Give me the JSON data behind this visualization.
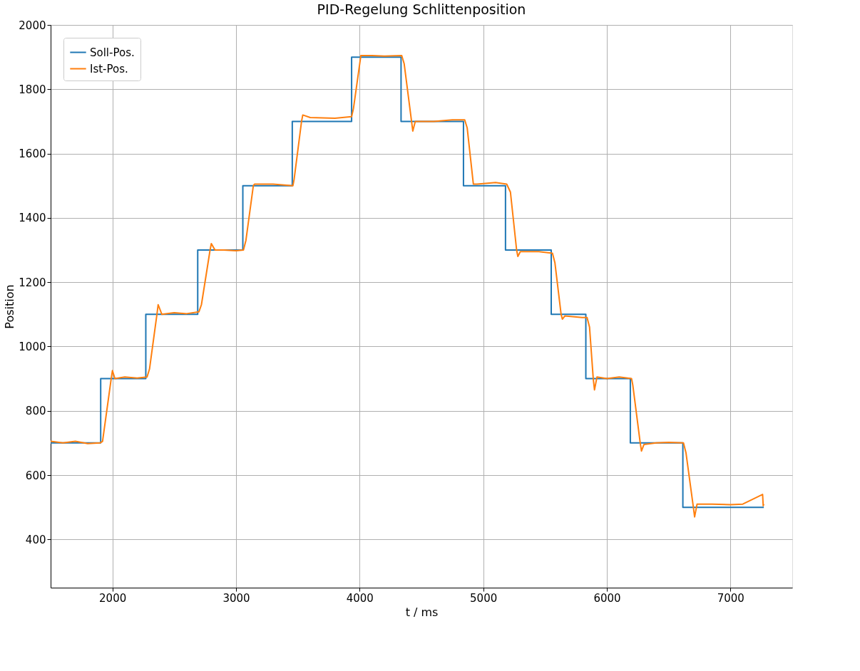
{
  "chart_data": {
    "type": "line",
    "title": "PID-Regelung Schlittenposition",
    "xlabel": "t / ms",
    "ylabel": "Position",
    "xlim": [
      1500,
      7500
    ],
    "ylim": [
      250,
      2000
    ],
    "xticks": [
      2000,
      3000,
      4000,
      5000,
      6000,
      7000
    ],
    "yticks": [
      400,
      600,
      800,
      1000,
      1200,
      1400,
      1600,
      1800,
      2000
    ],
    "grid": true,
    "legend": "top left",
    "line_style": "solid",
    "marker": "none",
    "series": [
      {
        "name": "Soll-Pos.",
        "type": "step",
        "color": "#1f77b4",
        "x": [
          1500,
          1905,
          2270,
          2690,
          3055,
          3455,
          3935,
          4335,
          4840,
          5180,
          5550,
          5830,
          6190,
          6615,
          7270
        ],
        "values": [
          700,
          900,
          1100,
          1300,
          1500,
          1700,
          1900,
          1700,
          1500,
          1300,
          1100,
          900,
          700,
          500,
          500
        ]
      },
      {
        "name": "Ist-Pos.",
        "color": "#ff7f0e",
        "x": [
          1500,
          1600,
          1700,
          1800,
          1900,
          1920,
          1990,
          2000,
          2020,
          2100,
          2200,
          2280,
          2300,
          2360,
          2370,
          2400,
          2500,
          2600,
          2700,
          2720,
          2790,
          2800,
          2830,
          2900,
          3000,
          3060,
          3080,
          3140,
          3150,
          3300,
          3460,
          3470,
          3530,
          3540,
          3600,
          3800,
          3935,
          3950,
          4010,
          4100,
          4200,
          4340,
          4360,
          4420,
          4430,
          4450,
          4600,
          4750,
          4850,
          4870,
          4920,
          4950,
          5100,
          5190,
          5220,
          5270,
          5280,
          5300,
          5450,
          5560,
          5580,
          5630,
          5640,
          5660,
          5800,
          5840,
          5860,
          5890,
          5900,
          5920,
          6000,
          6100,
          6200,
          6210,
          6270,
          6280,
          6300,
          6400,
          6500,
          6620,
          6640,
          6700,
          6710,
          6730,
          6850,
          7000,
          7100,
          7260,
          7265,
          7270
        ],
        "values": [
          705,
          700,
          705,
          698,
          700,
          705,
          900,
          925,
          900,
          905,
          902,
          905,
          930,
          1100,
          1130,
          1100,
          1105,
          1102,
          1108,
          1130,
          1300,
          1320,
          1300,
          1300,
          1298,
          1300,
          1330,
          1500,
          1505,
          1505,
          1500,
          1520,
          1700,
          1720,
          1712,
          1710,
          1715,
          1740,
          1905,
          1905,
          1903,
          1905,
          1880,
          1700,
          1670,
          1700,
          1700,
          1705,
          1705,
          1680,
          1505,
          1505,
          1510,
          1505,
          1480,
          1300,
          1280,
          1295,
          1295,
          1290,
          1260,
          1100,
          1085,
          1095,
          1090,
          1090,
          1060,
          900,
          865,
          905,
          900,
          905,
          900,
          880,
          700,
          675,
          695,
          700,
          702,
          700,
          670,
          500,
          470,
          510,
          510,
          508,
          510,
          540,
          505,
          510
        ]
      }
    ]
  }
}
